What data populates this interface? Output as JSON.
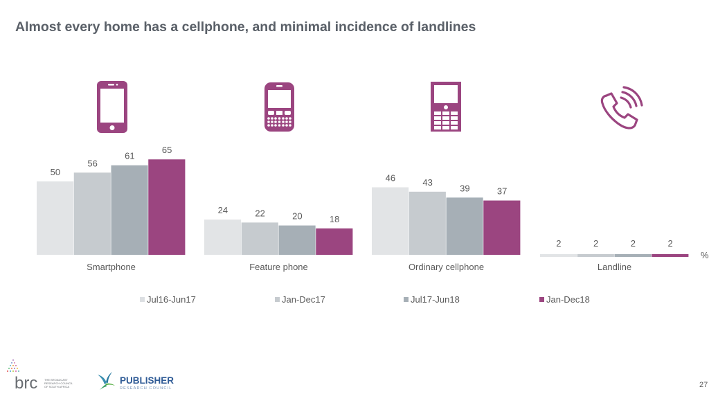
{
  "slide": {
    "title": "Almost every home has a cellphone, and minimal incidence of landlines",
    "page_number": "27",
    "unit_label": "%",
    "icons": [
      "smartphone-icon",
      "feature-phone-icon",
      "ordinary-cellphone-icon",
      "landline-phone-icon"
    ],
    "accent_color": "#9b4580",
    "logos": {
      "brc": {
        "mark": "brc",
        "line1": "THE BROADCAST",
        "line2": "RESEARCH COUNCIL",
        "line3": "OF SOUTH AFRICA"
      },
      "prc": {
        "name": "PUBLISHER",
        "sub": "RESEARCH COUNCIL"
      }
    }
  },
  "chart_data": {
    "type": "bar",
    "title": "Almost every home has a cellphone, and minimal incidence of landlines",
    "xlabel": "",
    "ylabel": "%",
    "ylim": [
      0,
      70
    ],
    "grid": false,
    "legend_position": "bottom",
    "categories": [
      "Smartphone",
      "Feature phone",
      "Ordinary cellphone",
      "Landline"
    ],
    "series": [
      {
        "name": "Jul16-Jun17",
        "color": "#e2e4e6",
        "values": [
          50,
          24,
          46,
          2
        ]
      },
      {
        "name": "Jan-Dec17",
        "color": "#c6cbcf",
        "values": [
          56,
          22,
          43,
          2
        ]
      },
      {
        "name": "Jul17-Jun18",
        "color": "#a6afb6",
        "values": [
          61,
          20,
          39,
          2
        ]
      },
      {
        "name": "Jan-Dec18",
        "color": "#9b4580",
        "values": [
          65,
          18,
          37,
          2
        ]
      }
    ]
  }
}
